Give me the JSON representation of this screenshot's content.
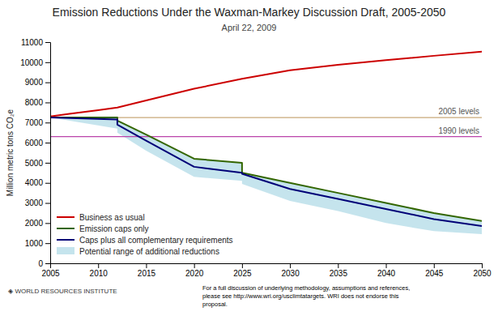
{
  "chart_data": {
    "type": "line",
    "title": "Emission Reductions Under the Waxman-Markey Discussion Draft, 2005-2050",
    "subtitle": "April 22, 2009",
    "ylabel": "Million metric tons CO₂e",
    "xlim": [
      2005,
      2050
    ],
    "ylim": [
      0,
      11000
    ],
    "xticks": [
      2005,
      2010,
      2015,
      2020,
      2025,
      2030,
      2035,
      2040,
      2045,
      2050
    ],
    "yticks": [
      0,
      1000,
      2000,
      3000,
      4000,
      5000,
      6000,
      7000,
      8000,
      9000,
      10000,
      11000
    ],
    "grid": false,
    "legend": "lower left",
    "series": [
      {
        "name": "Business as usual",
        "type": "line",
        "color": "#cc0000",
        "x": [
          2005,
          2007,
          2010,
          2012,
          2015,
          2020,
          2025,
          2030,
          2035,
          2040,
          2045,
          2050
        ],
        "values": [
          7300,
          7430,
          7620,
          7750,
          8100,
          8680,
          9180,
          9600,
          9870,
          10100,
          10320,
          10530
        ]
      },
      {
        "name": "Emission caps only",
        "type": "line",
        "color": "#336600",
        "x": [
          2005,
          2012,
          2012,
          2015,
          2020,
          2025,
          2025,
          2030,
          2035,
          2040,
          2045,
          2050
        ],
        "values": [
          7250,
          7250,
          7100,
          6400,
          5200,
          5000,
          4500,
          4000,
          3500,
          3000,
          2500,
          2100
        ]
      },
      {
        "name": "Caps plus all complementary requirements",
        "type": "line",
        "color": "#000077",
        "x": [
          2005,
          2012,
          2012,
          2015,
          2020,
          2025,
          2025,
          2030,
          2035,
          2040,
          2045,
          2050
        ],
        "values": [
          7250,
          7150,
          6900,
          6100,
          4800,
          4500,
          4450,
          3700,
          3200,
          2700,
          2200,
          1850
        ]
      },
      {
        "name": "Potential range of additional reductions",
        "type": "area",
        "color": "#add8e6",
        "x": [
          2005,
          2012,
          2012,
          2015,
          2020,
          2025,
          2025,
          2030,
          2035,
          2040,
          2045,
          2050
        ],
        "high": [
          7250,
          7250,
          7100,
          6400,
          5200,
          5000,
          4500,
          4000,
          3500,
          3000,
          2500,
          2100
        ],
        "low": [
          7250,
          6700,
          6500,
          5600,
          4300,
          4100,
          3950,
          3100,
          2600,
          2000,
          1600,
          1450
        ]
      }
    ],
    "reference_lines": [
      {
        "name": "2005 levels",
        "value": 7250,
        "color": "#c8a878"
      },
      {
        "name": "1990 levels",
        "value": 6300,
        "color": "#bb44aa"
      }
    ],
    "annotations": [
      "◈ WORLD RESOURCES INSTITUTE"
    ],
    "footnote": [
      "For a full discussion of underlying methodology, assumptions and references,",
      "please see http://www.wri.org/usclimtatargets. WRI does not endorse this",
      "proposal."
    ]
  }
}
